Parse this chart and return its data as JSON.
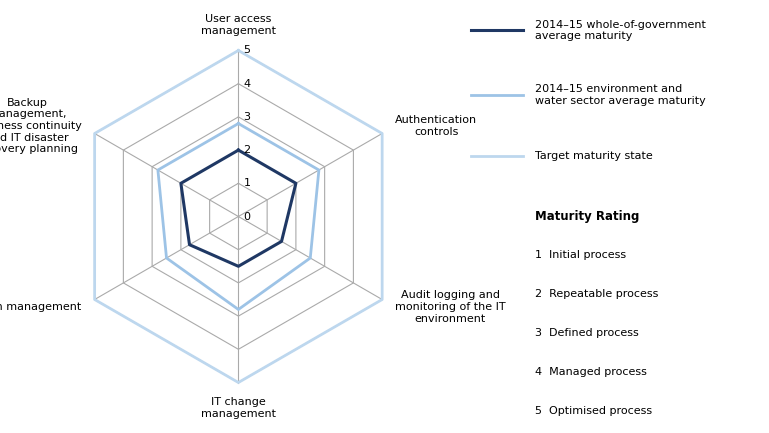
{
  "categories": [
    "User access\nmanagement",
    "Authentication\ncontrols",
    "Audit logging and\nmonitoring of the IT\nenvironment",
    "IT change\nmanagement",
    "Patch management",
    "Backup\nmanagement,\nbusiness continuity\nand IT disaster\nrecovery planning"
  ],
  "whole_gov": [
    2.0,
    2.0,
    1.5,
    1.5,
    1.7,
    2.0
  ],
  "env_water": [
    2.8,
    2.8,
    2.5,
    2.8,
    2.5,
    2.8
  ],
  "target": [
    5.0,
    5.0,
    5.0,
    5.0,
    5.0,
    5.0
  ],
  "whole_gov_color": "#1F3864",
  "env_water_color": "#9DC3E6",
  "target_color": "#BDD7EE",
  "grid_color": "#aaaaaa",
  "max_val": 5,
  "levels": [
    0,
    1,
    2,
    3,
    4,
    5
  ],
  "legend_gov": "2014–15 whole-of-government\naverage maturity",
  "legend_env": "2014–15 environment and\nwater sector average maturity",
  "legend_target": "Target maturity state",
  "maturity_title": "Maturity Rating",
  "maturity_items": [
    "1  Initial process",
    "2  Repeatable process",
    "3  Defined process",
    "4  Managed process",
    "5  Optimised process"
  ],
  "background_color": "#ffffff",
  "label_fontsize": 8,
  "tick_fontsize": 8
}
